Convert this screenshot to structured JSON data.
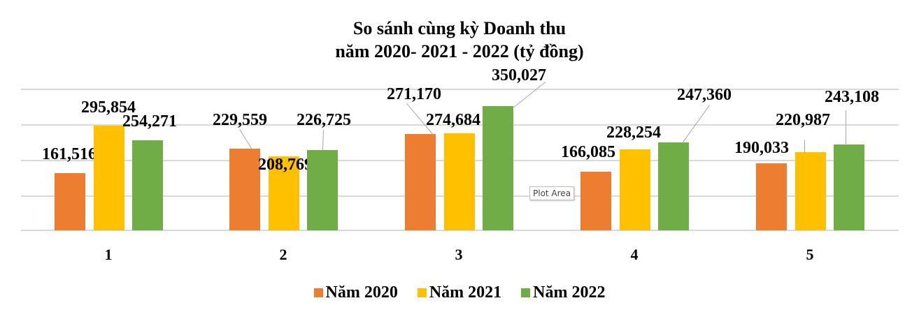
{
  "chart_data": {
    "type": "bar",
    "title": "So sánh cùng kỳ Doanh thu năm 2020- 2021 - 2022 (tỷ đồng)",
    "title_lines": [
      "So sánh cùng kỳ Doanh thu",
      "năm 2020- 2021 - 2022 (tỷ đồng)"
    ],
    "categories": [
      "1",
      "2",
      "3",
      "4",
      "5"
    ],
    "series": [
      {
        "name": "Năm 2020",
        "color": "#ED7D31",
        "values": [
          161516,
          229559,
          271170,
          166085,
          190033
        ],
        "labels": [
          "161,516",
          "229,559",
          "271,170",
          "166,085",
          "190,033"
        ]
      },
      {
        "name": "Năm 2021",
        "color": "#FFC000",
        "values": [
          295854,
          208769,
          274684,
          228254,
          220987
        ],
        "labels": [
          "295,854",
          "208,769",
          "274,684",
          "228,254",
          "220,987"
        ]
      },
      {
        "name": "Năm 2022",
        "color": "#70AD47",
        "values": [
          254271,
          226725,
          350027,
          247360,
          243108
        ],
        "labels": [
          "254,271",
          "226,725",
          "350,027",
          "247,360",
          "243,108"
        ]
      }
    ],
    "xlabel": "",
    "ylabel": "",
    "ylim": [
      0,
      400000
    ],
    "grid": true,
    "legend_position": "bottom"
  },
  "tooltip": "Plot Area"
}
